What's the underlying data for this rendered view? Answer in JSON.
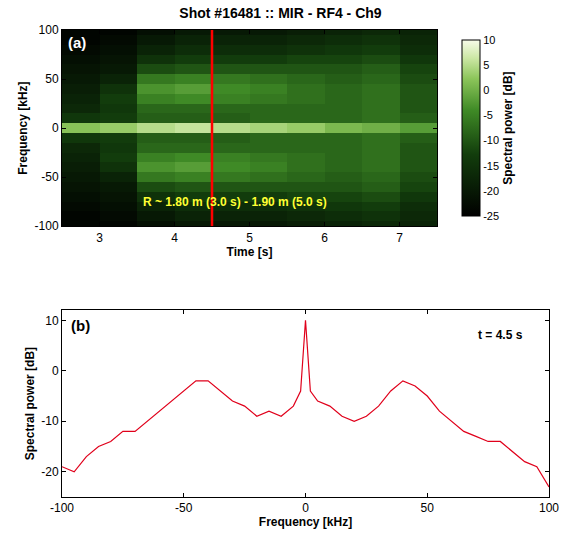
{
  "chart_data": [
    {
      "type": "heatmap",
      "title": "Shot #16481 :: MIR - RF4 - Ch9",
      "panel": "(a)",
      "x_label": "Time [s]",
      "y_label": "Frequency [kHz]",
      "x": [
        2.75,
        3.25,
        3.75,
        4.25,
        4.75,
        5.25,
        5.75,
        6.25,
        6.75,
        7.25
      ],
      "y": [
        -100,
        -90,
        -80,
        -70,
        -60,
        -50,
        -40,
        -30,
        -20,
        -10,
        0,
        10,
        20,
        30,
        40,
        50,
        60,
        70,
        80,
        90,
        100
      ],
      "z": [
        [
          -24,
          -24,
          -22,
          -20,
          -20,
          -20,
          -19,
          -18,
          -17,
          -18
        ],
        [
          -24,
          -23,
          -20,
          -18,
          -18,
          -18,
          -17,
          -16,
          -15,
          -17
        ],
        [
          -23,
          -22,
          -18,
          -16,
          -16,
          -16,
          -15,
          -14,
          -13,
          -16
        ],
        [
          -22,
          -21,
          -15,
          -13,
          -13,
          -13,
          -12,
          -12,
          -11,
          -14
        ],
        [
          -21,
          -20,
          -11,
          -10,
          -10,
          -10,
          -10,
          -10,
          -9,
          -12
        ],
        [
          -20,
          -18,
          -6,
          -5,
          -6,
          -7,
          -8,
          -9,
          -8,
          -11
        ],
        [
          -19,
          -15,
          -3,
          -2,
          -4,
          -5,
          -7,
          -8,
          -7,
          -10
        ],
        [
          -18,
          -13,
          -5,
          -4,
          -5,
          -6,
          -7,
          -8,
          -7,
          -10
        ],
        [
          -17,
          -14,
          -8,
          -8,
          -8,
          -8,
          -8,
          -8,
          -7,
          -10
        ],
        [
          -14,
          -13,
          -9,
          -9,
          -9,
          -8,
          -8,
          -8,
          -7,
          -9
        ],
        [
          2,
          3,
          5,
          6,
          5,
          4,
          3,
          1,
          0,
          -2
        ],
        [
          -14,
          -13,
          -9,
          -9,
          -9,
          -8,
          -8,
          -8,
          -7,
          -9
        ],
        [
          -17,
          -14,
          -8,
          -8,
          -8,
          -8,
          -8,
          -8,
          -7,
          -10
        ],
        [
          -18,
          -13,
          -5,
          -4,
          -5,
          -6,
          -7,
          -8,
          -7,
          -10
        ],
        [
          -19,
          -15,
          -3,
          -2,
          -4,
          -5,
          -7,
          -8,
          -7,
          -10
        ],
        [
          -20,
          -18,
          -6,
          -5,
          -6,
          -7,
          -8,
          -9,
          -8,
          -11
        ],
        [
          -21,
          -20,
          -11,
          -10,
          -10,
          -10,
          -10,
          -10,
          -9,
          -12
        ],
        [
          -22,
          -21,
          -15,
          -13,
          -13,
          -13,
          -12,
          -12,
          -11,
          -14
        ],
        [
          -23,
          -22,
          -18,
          -16,
          -16,
          -16,
          -15,
          -14,
          -13,
          -16
        ],
        [
          -24,
          -23,
          -20,
          -18,
          -18,
          -18,
          -17,
          -16,
          -15,
          -17
        ],
        [
          -24,
          -24,
          -22,
          -20,
          -20,
          -20,
          -19,
          -18,
          -17,
          -18
        ]
      ],
      "xlim": [
        2.5,
        7.5
      ],
      "xticks": [
        3,
        4,
        5,
        6,
        7
      ],
      "ylim": [
        -100,
        100
      ],
      "yticks": [
        -100,
        -50,
        0,
        50,
        100
      ],
      "colorbar": {
        "title": "Spectral power [dB]",
        "range": [
          -25,
          10
        ],
        "ticks": [
          -25,
          -20,
          -15,
          -10,
          -5,
          0,
          5,
          10
        ]
      },
      "vline": {
        "x": 4.5,
        "color": "#ff0000"
      },
      "annotations": [
        {
          "text": "R ~ 1.80 m (3.0 s) - 1.90 m (5.0 s)",
          "x": 4.8,
          "y": -75,
          "color": "#ffff33"
        }
      ]
    },
    {
      "type": "line",
      "panel": "(b)",
      "x_label": "Frequency [kHz]",
      "y_label": "Spectral power [dB]",
      "x": [
        -100,
        -95,
        -90,
        -85,
        -80,
        -75,
        -70,
        -65,
        -60,
        -55,
        -50,
        -45,
        -40,
        -35,
        -30,
        -25,
        -20,
        -15,
        -10,
        -5,
        -2,
        0,
        2,
        5,
        10,
        15,
        20,
        25,
        30,
        35,
        40,
        45,
        50,
        55,
        60,
        65,
        70,
        75,
        80,
        85,
        90,
        95,
        100
      ],
      "values": [
        -19,
        -20,
        -17,
        -15,
        -14,
        -12,
        -12,
        -10,
        -8,
        -6,
        -4,
        -2,
        -2,
        -4,
        -6,
        -7,
        -9,
        -8,
        -9,
        -7,
        -4,
        10,
        -4,
        -6,
        -7,
        -9,
        -10,
        -9,
        -7,
        -4,
        -2,
        -3,
        -5,
        -8,
        -10,
        -12,
        -13,
        -14,
        -14,
        -16,
        -18,
        -19,
        -23
      ],
      "color": "#e0001b",
      "xlim": [
        -100,
        100
      ],
      "xticks": [
        -100,
        -50,
        0,
        50,
        100
      ],
      "ylim": [
        -25,
        12
      ],
      "yticks": [
        -20,
        -10,
        0,
        10
      ],
      "annotations": [
        {
          "text": "t = 4.5 s",
          "x": 80,
          "y": 7,
          "color": "#000000"
        }
      ]
    }
  ]
}
